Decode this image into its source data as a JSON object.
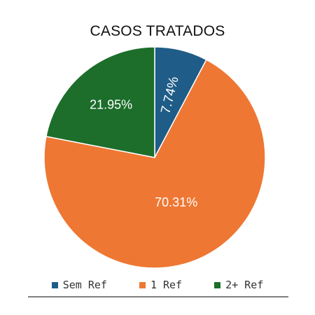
{
  "chart_data": {
    "type": "pie",
    "title": "CASOS TRATADOS",
    "legend_position": "bottom",
    "slices": [
      {
        "label": "Sem Ref",
        "value": 7.74,
        "display": "7.74%",
        "color": "#1f5c87"
      },
      {
        "label": "1 Ref",
        "value": 70.31,
        "display": "70.31%",
        "color": "#ee7733"
      },
      {
        "label": "2+ Ref",
        "value": 21.95,
        "display": "21.95%",
        "color": "#1c6e2a"
      }
    ]
  }
}
